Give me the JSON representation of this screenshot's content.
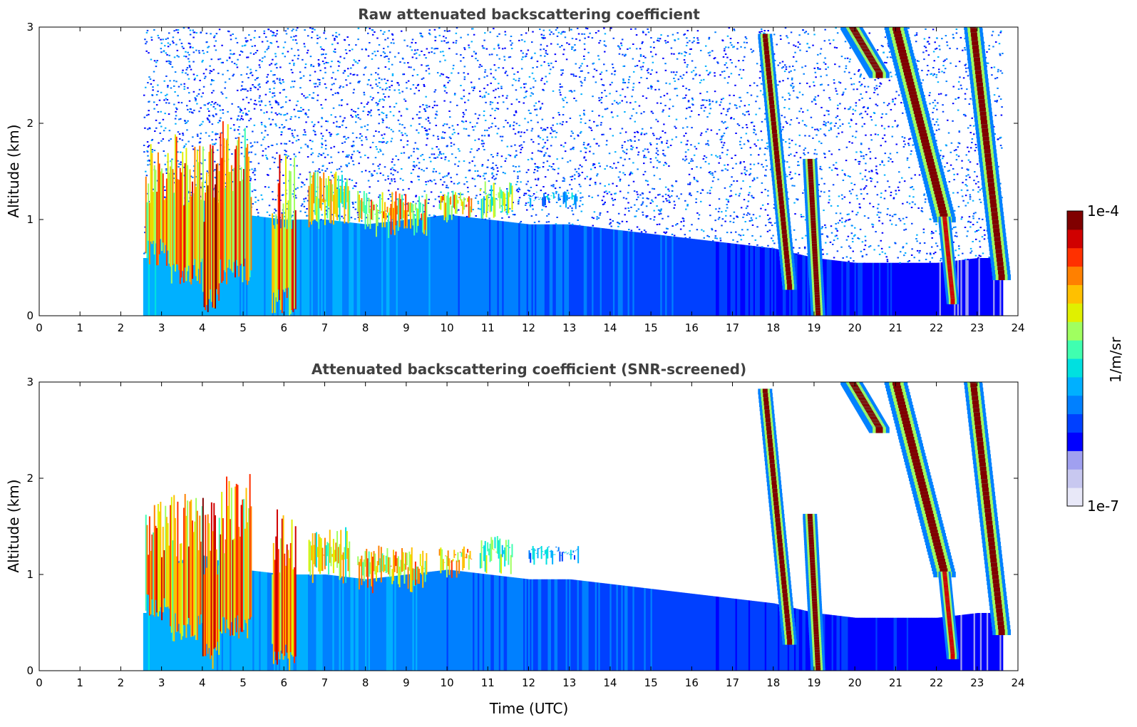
{
  "chart_data": [
    {
      "type": "heatmap",
      "title": "Raw attenuated backscattering coefficient",
      "xlabel": "",
      "ylabel": "Altitude (km)",
      "xlim": [
        0,
        24
      ],
      "ylim": [
        0,
        3
      ],
      "x_ticks": [
        0,
        1,
        2,
        3,
        4,
        5,
        6,
        7,
        8,
        9,
        10,
        11,
        12,
        13,
        14,
        15,
        16,
        17,
        18,
        19,
        20,
        21,
        22,
        23,
        24
      ],
      "y_ticks": [
        0,
        1,
        2,
        3
      ],
      "data_coverage_x": [
        2.55,
        23.6
      ],
      "noise_fill": true,
      "features": {
        "boundary_layer_top_km": [
          [
            2.6,
            1.15
          ],
          [
            3,
            1.1
          ],
          [
            4,
            1.2
          ],
          [
            5,
            1.05
          ],
          [
            6,
            1.0
          ],
          [
            7,
            1.0
          ],
          [
            8,
            0.95
          ],
          [
            9,
            1.0
          ],
          [
            10,
            1.05
          ],
          [
            11,
            1.0
          ],
          [
            12,
            0.95
          ],
          [
            13,
            0.95
          ],
          [
            14,
            0.9
          ],
          [
            15,
            0.85
          ],
          [
            16,
            0.8
          ],
          [
            17,
            0.75
          ],
          [
            18,
            0.7
          ],
          [
            19,
            0.6
          ],
          [
            20,
            0.55
          ],
          [
            21,
            0.55
          ],
          [
            22,
            0.55
          ],
          [
            23,
            0.6
          ],
          [
            23.6,
            0.6
          ]
        ],
        "cloud_segments": [
          {
            "x": [
              2.6,
              3.2
            ],
            "y": [
              0.5,
              1.8
            ],
            "intensity": 0.9
          },
          {
            "x": [
              3.2,
              4.0
            ],
            "y": [
              0.3,
              1.9
            ],
            "intensity": 0.9
          },
          {
            "x": [
              4.0,
              4.4
            ],
            "y": [
              0.0,
              1.8
            ],
            "intensity": 1.0
          },
          {
            "x": [
              4.4,
              5.2
            ],
            "y": [
              0.3,
              2.1
            ],
            "intensity": 0.9
          },
          {
            "x": [
              5.7,
              6.3
            ],
            "y": [
              0.0,
              1.7
            ],
            "intensity": 0.95
          },
          {
            "x": [
              6.6,
              7.6
            ],
            "y": [
              0.9,
              1.5
            ],
            "intensity": 0.8
          },
          {
            "x": [
              7.8,
              9.5
            ],
            "y": [
              0.8,
              1.3
            ],
            "intensity": 0.85
          },
          {
            "x": [
              9.8,
              10.6
            ],
            "y": [
              0.95,
              1.3
            ],
            "intensity": 0.85
          },
          {
            "x": [
              10.8,
              11.6
            ],
            "y": [
              1.0,
              1.4
            ],
            "intensity": 0.7
          },
          {
            "x": [
              12.0,
              13.2
            ],
            "y": [
              1.1,
              1.3
            ],
            "intensity": 0.5
          }
        ],
        "descending_bands": [
          {
            "start": [
              17.8,
              2.9
            ],
            "end": [
              18.4,
              0.3
            ],
            "width": 0.35,
            "intensity": 0.95
          },
          {
            "start": [
              18.9,
              1.6
            ],
            "end": [
              19.1,
              0.0
            ],
            "width": 0.35,
            "intensity": 1.0
          },
          {
            "start": [
              19.9,
              3.0
            ],
            "end": [
              20.6,
              2.5
            ],
            "width": 0.5,
            "intensity": 0.95
          },
          {
            "start": [
              21.0,
              3.0
            ],
            "end": [
              22.2,
              1.0
            ],
            "width": 0.55,
            "intensity": 0.95
          },
          {
            "start": [
              22.2,
              1.0
            ],
            "end": [
              22.4,
              0.15
            ],
            "width": 0.3,
            "intensity": 0.9
          },
          {
            "start": [
              22.9,
              3.0
            ],
            "end": [
              23.6,
              0.4
            ],
            "width": 0.45,
            "intensity": 1.0
          }
        ]
      }
    },
    {
      "type": "heatmap",
      "title": "Attenuated backscattering coefficient (SNR-screened)",
      "xlabel": "Time (UTC)",
      "ylabel": "Altitude (km)",
      "xlim": [
        0,
        24
      ],
      "ylim": [
        0,
        3
      ],
      "x_ticks": [
        0,
        1,
        2,
        3,
        4,
        5,
        6,
        7,
        8,
        9,
        10,
        11,
        12,
        13,
        14,
        15,
        16,
        17,
        18,
        19,
        20,
        21,
        22,
        23,
        24
      ],
      "y_ticks": [
        0,
        1,
        2,
        3
      ],
      "data_coverage_x": [
        2.55,
        23.6
      ],
      "noise_fill": false,
      "features": {
        "boundary_layer_top_km": [
          [
            2.6,
            1.15
          ],
          [
            3,
            1.1
          ],
          [
            4,
            1.2
          ],
          [
            5,
            1.05
          ],
          [
            6,
            1.0
          ],
          [
            7,
            1.0
          ],
          [
            8,
            0.95
          ],
          [
            9,
            1.0
          ],
          [
            10,
            1.05
          ],
          [
            11,
            1.0
          ],
          [
            12,
            0.95
          ],
          [
            13,
            0.95
          ],
          [
            14,
            0.9
          ],
          [
            15,
            0.85
          ],
          [
            16,
            0.8
          ],
          [
            17,
            0.75
          ],
          [
            18,
            0.7
          ],
          [
            19,
            0.6
          ],
          [
            20,
            0.55
          ],
          [
            21,
            0.55
          ],
          [
            22,
            0.55
          ],
          [
            23,
            0.6
          ],
          [
            23.6,
            0.6
          ]
        ],
        "cloud_segments": [
          {
            "x": [
              2.6,
              3.2
            ],
            "y": [
              0.5,
              1.8
            ],
            "intensity": 0.9
          },
          {
            "x": [
              3.2,
              4.0
            ],
            "y": [
              0.3,
              1.9
            ],
            "intensity": 0.9
          },
          {
            "x": [
              4.0,
              4.4
            ],
            "y": [
              0.0,
              1.8
            ],
            "intensity": 1.0
          },
          {
            "x": [
              4.4,
              5.2
            ],
            "y": [
              0.3,
              2.1
            ],
            "intensity": 0.9
          },
          {
            "x": [
              5.7,
              6.3
            ],
            "y": [
              0.0,
              1.7
            ],
            "intensity": 0.95
          },
          {
            "x": [
              6.6,
              7.6
            ],
            "y": [
              0.9,
              1.5
            ],
            "intensity": 0.8
          },
          {
            "x": [
              7.8,
              9.5
            ],
            "y": [
              0.8,
              1.3
            ],
            "intensity": 0.85
          },
          {
            "x": [
              9.8,
              10.6
            ],
            "y": [
              0.95,
              1.3
            ],
            "intensity": 0.85
          },
          {
            "x": [
              10.8,
              11.6
            ],
            "y": [
              1.0,
              1.4
            ],
            "intensity": 0.7
          },
          {
            "x": [
              12.0,
              13.2
            ],
            "y": [
              1.1,
              1.3
            ],
            "intensity": 0.5
          }
        ],
        "descending_bands": [
          {
            "start": [
              17.8,
              2.9
            ],
            "end": [
              18.4,
              0.3
            ],
            "width": 0.35,
            "intensity": 0.95
          },
          {
            "start": [
              18.9,
              1.6
            ],
            "end": [
              19.1,
              0.0
            ],
            "width": 0.35,
            "intensity": 1.0
          },
          {
            "start": [
              19.9,
              3.0
            ],
            "end": [
              20.6,
              2.5
            ],
            "width": 0.5,
            "intensity": 0.95
          },
          {
            "start": [
              21.0,
              3.0
            ],
            "end": [
              22.2,
              1.0
            ],
            "width": 0.55,
            "intensity": 0.95
          },
          {
            "start": [
              22.2,
              1.0
            ],
            "end": [
              22.4,
              0.15
            ],
            "width": 0.3,
            "intensity": 0.9
          },
          {
            "start": [
              22.9,
              3.0
            ],
            "end": [
              23.6,
              0.4
            ],
            "width": 0.45,
            "intensity": 1.0
          }
        ]
      }
    }
  ],
  "colorbar": {
    "label": "1/m/sr",
    "max_label": "1e-4",
    "min_label": "1e-7",
    "colors": [
      "#e8e8f8",
      "#c8c8f0",
      "#a0a0f0",
      "#0000ff",
      "#0040ff",
      "#0080ff",
      "#00b0ff",
      "#00e0e0",
      "#40ffb0",
      "#a0ff60",
      "#e0f000",
      "#ffc000",
      "#ff8000",
      "#ff3000",
      "#d00000",
      "#800000"
    ]
  }
}
